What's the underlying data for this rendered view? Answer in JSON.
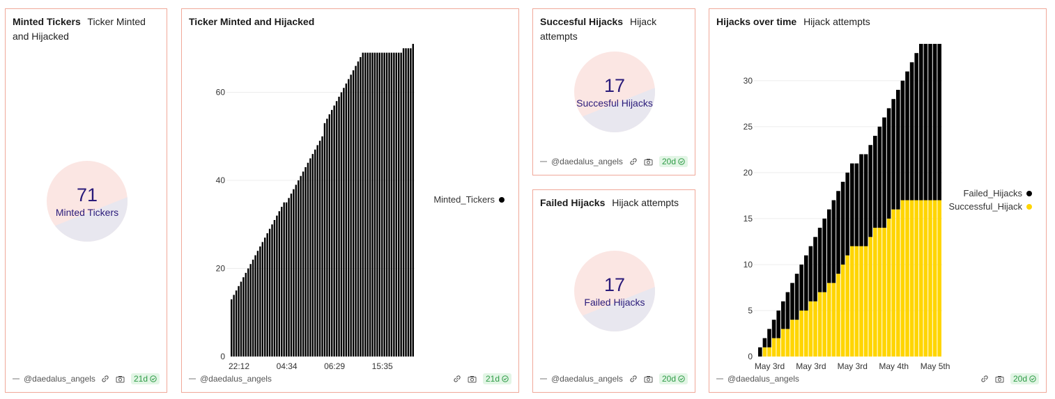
{
  "panels": {
    "minted": {
      "title": "Minted Tickers",
      "subtitle": "Ticker Minted and Hijacked",
      "value": "71",
      "label": "Minted Tickers",
      "footer": {
        "user": "@daedalus_angels",
        "age": "21d"
      }
    },
    "chart1": {
      "title": "Ticker Minted and Hijacked",
      "subtitle": "",
      "legend": [
        {
          "name": "Minted_Tickers",
          "color": "#000000"
        }
      ],
      "footer": {
        "user": "@daedalus_angels",
        "age": "21d"
      }
    },
    "successful": {
      "title": "Succesful Hijacks",
      "subtitle": "Hijack attempts",
      "value": "17",
      "label": "Succesful Hijacks",
      "footer": {
        "user": "@daedalus_angels",
        "age": "20d"
      }
    },
    "failed": {
      "title": "Failed Hijacks",
      "subtitle": "Hijack attempts",
      "value": "17",
      "label": "Failed Hijacks",
      "footer": {
        "user": "@daedalus_angels",
        "age": "20d"
      }
    },
    "chart2": {
      "title": "Hijacks over time",
      "subtitle": "Hijack attempts",
      "legend": [
        {
          "name": "Failed_Hijacks",
          "color": "#000000"
        },
        {
          "name": "Successful_Hijack",
          "color": "#ffd500"
        }
      ],
      "footer": {
        "user": "@daedalus_angels",
        "age": "20d"
      }
    }
  },
  "chart_data": [
    {
      "type": "bar",
      "title": "Ticker Minted and Hijacked",
      "xlabel": "",
      "ylabel": "",
      "ylim": [
        0,
        71
      ],
      "y_ticks": [
        0,
        20,
        40,
        60
      ],
      "x_tick_labels": [
        "22:12",
        "04:34",
        "06:29",
        "15:35"
      ],
      "x_tick_indices": [
        3,
        23,
        43,
        63
      ],
      "grid": true,
      "legend_position": "right",
      "series": [
        {
          "name": "Minted_Tickers",
          "color": "#000000",
          "values": [
            13,
            14,
            15,
            16,
            17,
            18,
            19,
            20,
            21,
            22,
            23,
            24,
            25,
            26,
            27,
            28,
            29,
            30,
            31,
            32,
            33,
            34,
            35,
            35,
            36,
            37,
            38,
            39,
            40,
            41,
            42,
            43,
            44,
            45,
            46,
            47,
            48,
            49,
            50,
            53,
            54,
            55,
            56,
            57,
            58,
            59,
            60,
            61,
            62,
            63,
            64,
            65,
            66,
            67,
            68,
            69,
            69,
            69,
            69,
            69,
            69,
            69,
            69,
            69,
            69,
            69,
            69,
            69,
            69,
            69,
            69,
            69,
            70,
            70,
            70,
            70,
            71
          ]
        }
      ]
    },
    {
      "type": "bar",
      "stacked": true,
      "title": "Hijacks over time",
      "xlabel": "",
      "ylabel": "",
      "ylim": [
        0,
        34
      ],
      "y_ticks": [
        0,
        5,
        10,
        15,
        20,
        25,
        30
      ],
      "x_tick_labels": [
        "May 3rd",
        "May 3rd",
        "May 3rd",
        "May 4th",
        "May 5th"
      ],
      "x_tick_indices": [
        2,
        11,
        20,
        29,
        38
      ],
      "grid": true,
      "legend_position": "right",
      "series": [
        {
          "name": "Successful_Hijack",
          "color": "#ffd500",
          "values": [
            0,
            1,
            1,
            2,
            2,
            3,
            3,
            4,
            4,
            5,
            5,
            6,
            6,
            7,
            7,
            8,
            8,
            9,
            10,
            11,
            12,
            12,
            12,
            12,
            13,
            14,
            14,
            14,
            15,
            16,
            16,
            17,
            17,
            17,
            17,
            17,
            17,
            17,
            17,
            17
          ]
        },
        {
          "name": "Failed_Hijacks",
          "color": "#000000",
          "values": [
            1,
            1,
            2,
            2,
            3,
            3,
            4,
            4,
            5,
            5,
            6,
            6,
            7,
            7,
            8,
            8,
            9,
            9,
            9,
            9,
            9,
            9,
            10,
            10,
            10,
            10,
            11,
            12,
            12,
            12,
            13,
            13,
            14,
            15,
            16,
            17,
            17,
            17,
            17,
            17
          ]
        }
      ]
    }
  ]
}
